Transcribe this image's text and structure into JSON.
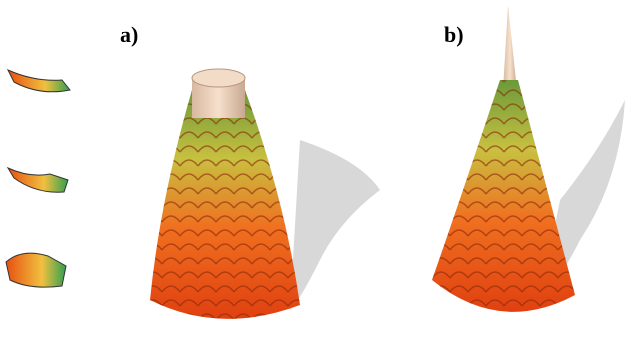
{
  "figure": {
    "labels": [
      "a)",
      "b)"
    ]
  }
}
